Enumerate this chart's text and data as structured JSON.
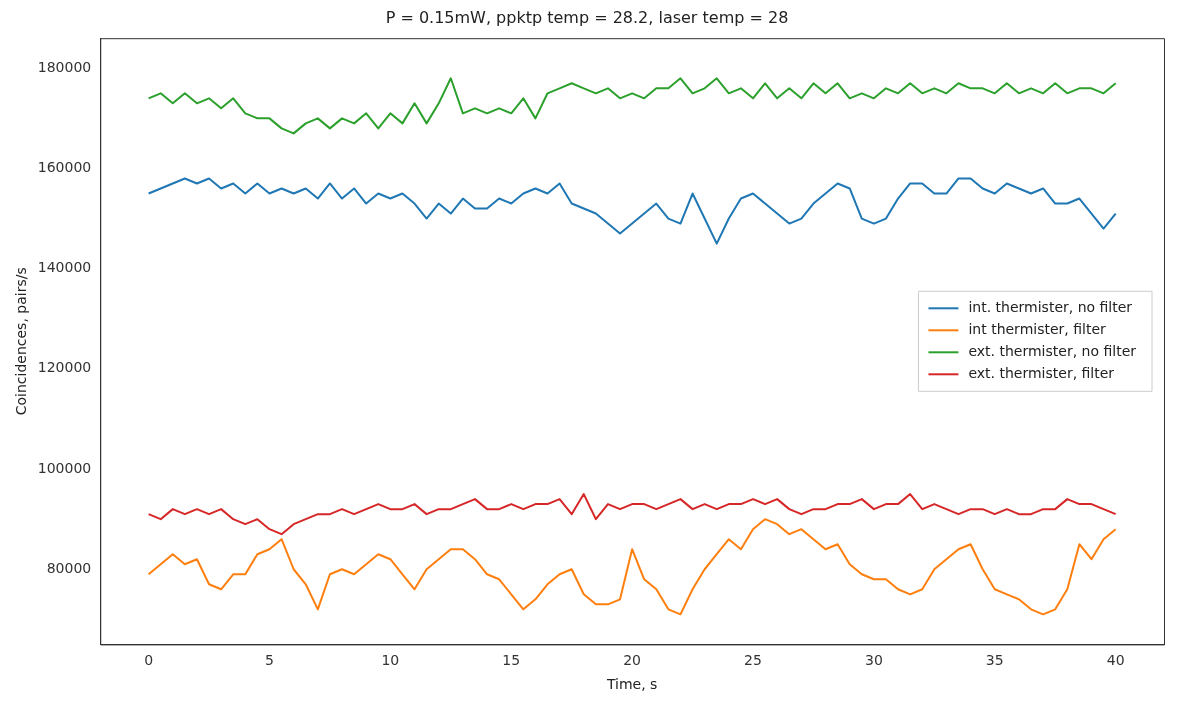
{
  "chart_data": {
    "type": "line",
    "title": "P = 0.15mW, ppktp temp = 28.2, laser temp = 28",
    "xlabel": "Time, s",
    "ylabel": "Coincidences, pairs/s",
    "x": [
      0,
      0.5,
      1,
      1.5,
      2,
      2.5,
      3,
      3.5,
      4,
      4.5,
      5,
      5.5,
      6,
      6.5,
      7,
      7.5,
      8,
      8.5,
      9,
      9.5,
      10,
      10.5,
      11,
      11.5,
      12,
      12.5,
      13,
      13.5,
      14,
      14.5,
      15,
      15.5,
      16,
      16.5,
      17,
      17.5,
      18,
      18.5,
      19,
      19.5,
      20,
      20.5,
      21,
      21.5,
      22,
      22.5,
      23,
      23.5,
      24,
      24.5,
      25,
      25.5,
      26,
      26.5,
      27,
      27.5,
      28,
      28.5,
      29,
      29.5,
      30,
      30.5,
      31,
      31.5,
      32,
      32.5,
      33,
      33.5,
      34,
      34.5,
      35,
      35.5,
      36,
      36.5,
      37,
      37.5,
      38,
      38.5,
      39,
      39.5,
      40
    ],
    "series": [
      {
        "name": "int. thermister, no filter",
        "color": "#1f77b4",
        "values": [
          155000,
          156000,
          157000,
          158000,
          157000,
          158000,
          156000,
          157000,
          155000,
          157000,
          155000,
          156000,
          155000,
          156000,
          154000,
          157000,
          154000,
          156000,
          153000,
          155000,
          154000,
          155000,
          153000,
          150000,
          153000,
          151000,
          154000,
          152000,
          152000,
          154000,
          153000,
          155000,
          156000,
          155000,
          157000,
          153000,
          152000,
          151000,
          149000,
          147000,
          149000,
          151000,
          153000,
          150000,
          149000,
          155000,
          150000,
          145000,
          150000,
          154000,
          155000,
          153000,
          151000,
          149000,
          150000,
          153000,
          155000,
          157000,
          156000,
          150000,
          149000,
          150000,
          154000,
          157000,
          157000,
          155000,
          155000,
          158000,
          158000,
          156000,
          155000,
          157000,
          156000,
          155000,
          156000,
          153000,
          153000,
          154000,
          151000,
          148000,
          151000
        ]
      },
      {
        "name": "int thermister, filter",
        "color": "#ff7f0e",
        "values": [
          79000,
          81000,
          83000,
          81000,
          82000,
          77000,
          76000,
          79000,
          79000,
          83000,
          84000,
          86000,
          80000,
          77000,
          72000,
          79000,
          80000,
          79000,
          81000,
          83000,
          82000,
          79000,
          76000,
          80000,
          82000,
          84000,
          84000,
          82000,
          79000,
          78000,
          75000,
          72000,
          74000,
          77000,
          79000,
          80000,
          75000,
          73000,
          73000,
          74000,
          84000,
          78000,
          76000,
          72000,
          71000,
          76000,
          80000,
          83000,
          86000,
          84000,
          88000,
          90000,
          89000,
          87000,
          88000,
          86000,
          84000,
          85000,
          81000,
          79000,
          78000,
          78000,
          76000,
          75000,
          76000,
          80000,
          82000,
          84000,
          85000,
          80000,
          76000,
          75000,
          74000,
          72000,
          71000,
          72000,
          76000,
          85000,
          82000,
          86000,
          88000
        ]
      },
      {
        "name": "ext. thermister, no filter",
        "color": "#2ca02c",
        "values": [
          174000,
          175000,
          173000,
          175000,
          173000,
          174000,
          172000,
          174000,
          171000,
          170000,
          170000,
          168000,
          167000,
          169000,
          170000,
          168000,
          170000,
          169000,
          171000,
          168000,
          171000,
          169000,
          173000,
          169000,
          173000,
          178000,
          171000,
          172000,
          171000,
          172000,
          171000,
          174000,
          170000,
          175000,
          176000,
          177000,
          176000,
          175000,
          176000,
          174000,
          175000,
          174000,
          176000,
          176000,
          178000,
          175000,
          176000,
          178000,
          175000,
          176000,
          174000,
          177000,
          174000,
          176000,
          174000,
          177000,
          175000,
          177000,
          174000,
          175000,
          174000,
          176000,
          175000,
          177000,
          175000,
          176000,
          175000,
          177000,
          176000,
          176000,
          175000,
          177000,
          175000,
          176000,
          175000,
          177000,
          175000,
          176000,
          176000,
          175000,
          177000
        ]
      },
      {
        "name": "ext. thermister, filter",
        "color": "#d62728",
        "values": [
          91000,
          90000,
          92000,
          91000,
          92000,
          91000,
          92000,
          90000,
          89000,
          90000,
          88000,
          87000,
          89000,
          90000,
          91000,
          91000,
          92000,
          91000,
          92000,
          93000,
          92000,
          92000,
          93000,
          91000,
          92000,
          92000,
          93000,
          94000,
          92000,
          92000,
          93000,
          92000,
          93000,
          93000,
          94000,
          91000,
          95000,
          90000,
          93000,
          92000,
          93000,
          93000,
          92000,
          93000,
          94000,
          92000,
          93000,
          92000,
          93000,
          93000,
          94000,
          93000,
          94000,
          92000,
          91000,
          92000,
          92000,
          93000,
          93000,
          94000,
          92000,
          93000,
          93000,
          95000,
          92000,
          93000,
          92000,
          91000,
          92000,
          92000,
          91000,
          92000,
          91000,
          91000,
          92000,
          92000,
          94000,
          93000,
          93000,
          92000,
          91000
        ]
      }
    ],
    "xlim": [
      -2,
      42
    ],
    "xticks": [
      0,
      5,
      10,
      15,
      20,
      25,
      30,
      35,
      40
    ],
    "ylim": [
      65000,
      186000
    ],
    "yticks": [
      80000,
      100000,
      120000,
      140000,
      160000,
      180000
    ],
    "legend": "right",
    "grid": false,
    "marker": "none",
    "line_style": "solid"
  }
}
